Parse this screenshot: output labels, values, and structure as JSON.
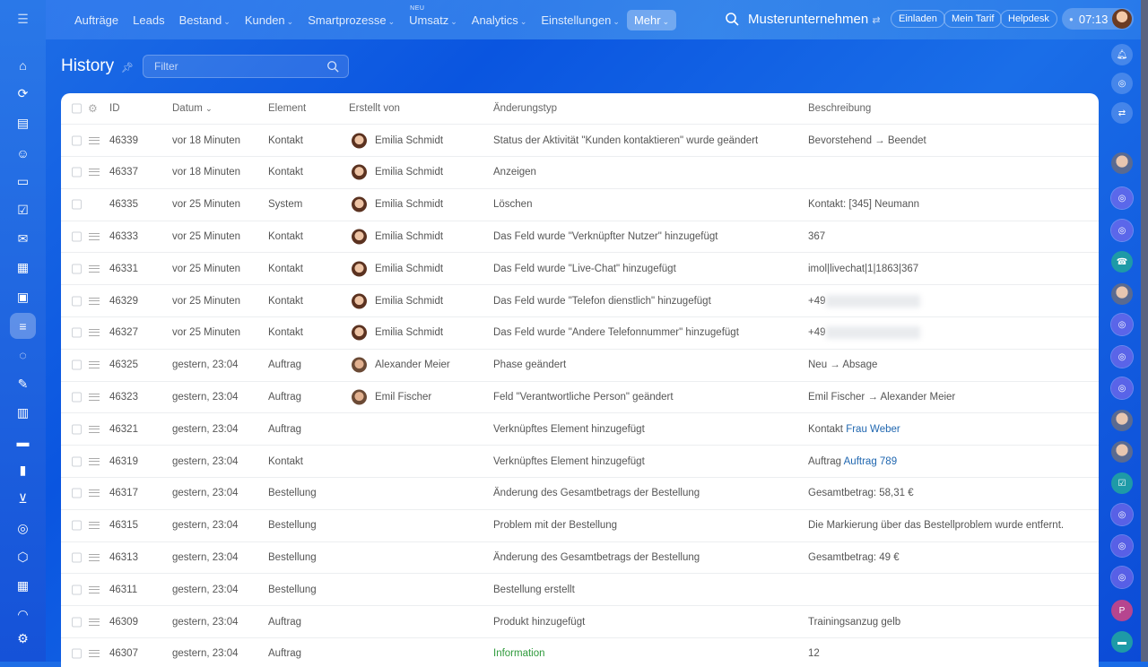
{
  "nav": {
    "items": [
      {
        "label": "Aufträge",
        "dropdown": false
      },
      {
        "label": "Leads",
        "dropdown": false
      },
      {
        "label": "Bestand",
        "dropdown": true
      },
      {
        "label": "Kunden",
        "dropdown": true
      },
      {
        "label": "Smartprozesse",
        "dropdown": true
      },
      {
        "label": "Umsatz",
        "dropdown": true,
        "badge": "NEU"
      },
      {
        "label": "Analytics",
        "dropdown": true
      },
      {
        "label": "Einstellungen",
        "dropdown": true
      },
      {
        "label": "Mehr",
        "dropdown": true,
        "active": true
      }
    ],
    "company": "Musterunternehmen",
    "invite": "Einladen",
    "plan": "Mein Tarif",
    "helpdesk": "Helpdesk",
    "time": "07:13"
  },
  "page": {
    "title": "History",
    "filter_placeholder": "Filter"
  },
  "table": {
    "headers": {
      "id": "ID",
      "date": "Datum",
      "element": "Element",
      "created_by": "Erstellt von",
      "change_type": "Änderungstyp",
      "description": "Beschreibung"
    },
    "rows": [
      {
        "id": "46339",
        "date": "vor 18 Minuten",
        "element": "Kontakt",
        "by": "Emilia Schmidt",
        "change": "Status der Aktivität \"Kunden kontaktieren\" wurde geändert",
        "desc": "Bevorstehend → Beendet"
      },
      {
        "id": "46337",
        "date": "vor 18 Minuten",
        "element": "Kontakt",
        "by": "Emilia Schmidt",
        "change": "Anzeigen",
        "desc": ""
      },
      {
        "id": "46335",
        "date": "vor 25 Minuten",
        "element": "System",
        "by": "Emilia Schmidt",
        "change": "Löschen",
        "desc": "Kontakt: [345] Neumann",
        "nodrag": true
      },
      {
        "id": "46333",
        "date": "vor 25 Minuten",
        "element": "Kontakt",
        "by": "Emilia Schmidt",
        "change": "Das Feld wurde \"Verknüpfter Nutzer\" hinzugefügt",
        "desc": "367"
      },
      {
        "id": "46331",
        "date": "vor 25 Minuten",
        "element": "Kontakt",
        "by": "Emilia Schmidt",
        "change": "Das Feld wurde \"Live-Chat\" hinzugefügt",
        "desc": "imol|livechat|1|1863|367"
      },
      {
        "id": "46329",
        "date": "vor 25 Minuten",
        "element": "Kontakt",
        "by": "Emilia Schmidt",
        "change": "Das Feld wurde \"Telefon dienstlich\" hinzugefügt",
        "desc": "+49",
        "blurred": true
      },
      {
        "id": "46327",
        "date": "vor 25 Minuten",
        "element": "Kontakt",
        "by": "Emilia Schmidt",
        "change": "Das Feld wurde \"Andere Telefonnummer\" hinzugefügt",
        "desc": "+49",
        "blurred": true
      },
      {
        "id": "46325",
        "date": "gestern, 23:04",
        "element": "Auftrag",
        "by": "Alexander Meier",
        "change": "Phase geändert",
        "desc": "Neu → Absage",
        "male": true
      },
      {
        "id": "46323",
        "date": "gestern, 23:04",
        "element": "Auftrag",
        "by": "Emil Fischer",
        "change": "Feld \"Verantwortliche Person\" geändert",
        "desc": "Emil Fischer → Alexander Meier",
        "male": true
      },
      {
        "id": "46321",
        "date": "gestern, 23:04",
        "element": "Auftrag",
        "by": "",
        "change": "Verknüpftes Element hinzugefügt",
        "desc": "Kontakt",
        "link": "Frau Weber"
      },
      {
        "id": "46319",
        "date": "gestern, 23:04",
        "element": "Kontakt",
        "by": "",
        "change": "Verknüpftes Element hinzugefügt",
        "desc": "Auftrag",
        "link": "Auftrag 789"
      },
      {
        "id": "46317",
        "date": "gestern, 23:04",
        "element": "Bestellung",
        "by": "",
        "change": "Änderung des Gesamtbetrags der Bestellung",
        "desc": "Gesamtbetrag: 58,31 €"
      },
      {
        "id": "46315",
        "date": "gestern, 23:04",
        "element": "Bestellung",
        "by": "",
        "change": "Problem mit der Bestellung",
        "desc": "Die Markierung über das Bestellproblem wurde entfernt."
      },
      {
        "id": "46313",
        "date": "gestern, 23:04",
        "element": "Bestellung",
        "by": "",
        "change": "Änderung des Gesamtbetrags der Bestellung",
        "desc": "Gesamtbetrag: 49 €"
      },
      {
        "id": "46311",
        "date": "gestern, 23:04",
        "element": "Bestellung",
        "by": "",
        "change": "Bestellung erstellt",
        "desc": ""
      },
      {
        "id": "46309",
        "date": "gestern, 23:04",
        "element": "Auftrag",
        "by": "",
        "change": "Produkt hinzugefügt",
        "desc": "Trainingsanzug gelb"
      },
      {
        "id": "46307",
        "date": "gestern, 23:04",
        "element": "Auftrag",
        "by": "",
        "change": "Information",
        "desc": "12",
        "green": true
      }
    ]
  },
  "leftbar_icons": [
    "menu",
    "home",
    "automation",
    "documents",
    "contacts",
    "inventory",
    "tasks",
    "mail",
    "calendar",
    "sites",
    "history",
    "chat",
    "sign",
    "store",
    "cards",
    "analytics",
    "cart",
    "goals",
    "products",
    "scheduler",
    "more",
    "settings"
  ],
  "rightbar_icons": [
    "bell",
    "copilot",
    "chat-exchange",
    "user-avatar",
    "openline",
    "openline",
    "phone",
    "user-avatar",
    "openline",
    "openline",
    "openline",
    "user-avatar",
    "user-avatar",
    "task",
    "openline",
    "openline",
    "openline",
    "user-initial",
    "messages"
  ],
  "rightbar_initial": "P",
  "colors": {
    "accent": "#0b55e0",
    "link": "#2067b0",
    "success": "#2e9a3b"
  }
}
